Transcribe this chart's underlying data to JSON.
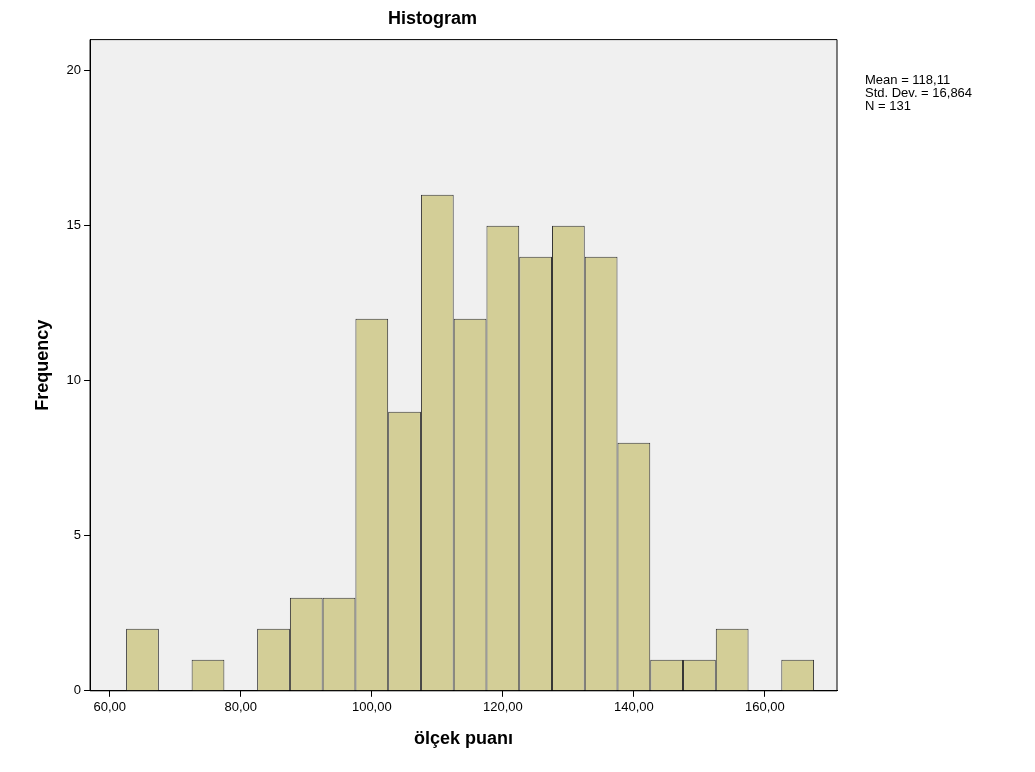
{
  "chart_data": {
    "type": "histogram",
    "title": "Histogram",
    "xlabel": "ölçek puanı",
    "ylabel": "Frequency",
    "bins": [
      62.5,
      67.5,
      72.5,
      77.5,
      82.5,
      87.5,
      92.5,
      97.5,
      102.5,
      107.5,
      112.5,
      117.5,
      122.5,
      127.5,
      132.5,
      137.5,
      142.5,
      147.5,
      152.5,
      157.5,
      162.5,
      167.5
    ],
    "values": [
      2,
      0,
      1,
      0,
      2,
      3,
      3,
      12,
      9,
      16,
      12,
      15,
      14,
      15,
      14,
      8,
      1,
      1,
      2,
      0,
      1
    ],
    "color": "#d3ce97",
    "xlim": [
      57,
      171
    ],
    "xticks": [
      {
        "value": 60,
        "label": "60,00"
      },
      {
        "value": 80,
        "label": "80,00"
      },
      {
        "value": 100,
        "label": "100,00"
      },
      {
        "value": 120,
        "label": "120,00"
      },
      {
        "value": 140,
        "label": "140,00"
      },
      {
        "value": 160,
        "label": "160,00"
      }
    ],
    "ylim": [
      0,
      21
    ],
    "yticks": [
      0,
      5,
      10,
      15,
      20
    ],
    "grid": false,
    "annotations": [
      "Mean = 118,11",
      "Std. Dev. = 16,864",
      "N = 131"
    ]
  }
}
